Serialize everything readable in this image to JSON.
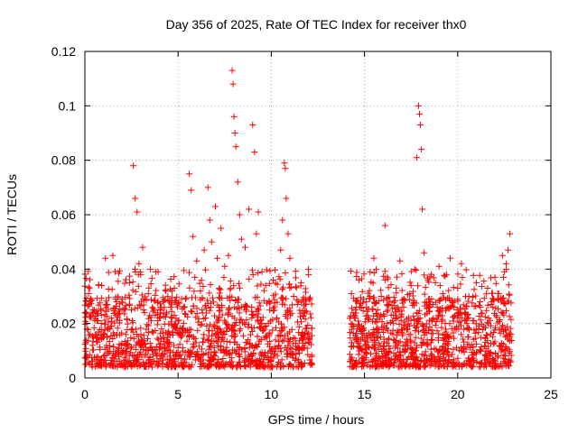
{
  "chart_data": {
    "type": "scatter",
    "title": "Day 356 of 2025, Rate Of TEC Index for receiver thx0",
    "xlabel": "GPS time / hours",
    "ylabel": "ROTI / TECUs",
    "xlim": [
      0,
      25
    ],
    "ylim": [
      0,
      0.12
    ],
    "xticks": [
      0,
      5,
      10,
      15,
      20,
      25
    ],
    "xtick_labels": [
      "0",
      "5",
      "10",
      "15",
      "20",
      "25"
    ],
    "yticks": [
      0,
      0.02,
      0.04,
      0.06,
      0.08,
      0.1,
      0.12
    ],
    "ytick_labels": [
      "0",
      "0.02",
      "0.04",
      "0.06",
      "0.08",
      "0.1",
      "0.12"
    ],
    "grid": true,
    "marker": "+",
    "color": "#ff0000",
    "data_gap_hours": [
      12.2,
      14.2
    ],
    "series": [
      {
        "name": "ROTI",
        "points": [
          [
            0.1,
            0.018
          ],
          [
            0.2,
            0.031
          ],
          [
            0.4,
            0.012
          ],
          [
            0.5,
            0.025
          ],
          [
            0.7,
            0.021
          ],
          [
            0.9,
            0.034
          ],
          [
            1.0,
            0.015
          ],
          [
            1.1,
            0.044
          ],
          [
            1.2,
            0.027
          ],
          [
            1.4,
            0.019
          ],
          [
            1.5,
            0.045
          ],
          [
            1.7,
            0.023
          ],
          [
            1.8,
            0.011
          ],
          [
            2.0,
            0.029
          ],
          [
            2.2,
            0.016
          ],
          [
            2.4,
            0.035
          ],
          [
            2.6,
            0.078
          ],
          [
            2.7,
            0.066
          ],
          [
            2.8,
            0.061
          ],
          [
            2.9,
            0.042
          ],
          [
            3.0,
            0.038
          ],
          [
            3.1,
            0.048
          ],
          [
            3.2,
            0.024
          ],
          [
            3.4,
            0.031
          ],
          [
            3.6,
            0.017
          ],
          [
            3.8,
            0.039
          ],
          [
            4.0,
            0.022
          ],
          [
            4.2,
            0.028
          ],
          [
            4.4,
            0.014
          ],
          [
            4.6,
            0.026
          ],
          [
            4.8,
            0.033
          ],
          [
            5.0,
            0.021
          ],
          [
            5.2,
            0.018
          ],
          [
            5.4,
            0.029
          ],
          [
            5.6,
            0.075
          ],
          [
            5.7,
            0.069
          ],
          [
            5.8,
            0.052
          ],
          [
            5.9,
            0.037
          ],
          [
            6.0,
            0.043
          ],
          [
            6.2,
            0.032
          ],
          [
            6.4,
            0.047
          ],
          [
            6.6,
            0.07
          ],
          [
            6.7,
            0.058
          ],
          [
            6.8,
            0.05
          ],
          [
            7.0,
            0.063
          ],
          [
            7.1,
            0.044
          ],
          [
            7.3,
            0.055
          ],
          [
            7.5,
            0.041
          ],
          [
            7.7,
            0.045
          ],
          [
            7.9,
            0.113
          ],
          [
            7.95,
            0.108
          ],
          [
            8.0,
            0.096
          ],
          [
            8.05,
            0.09
          ],
          [
            8.1,
            0.085
          ],
          [
            8.2,
            0.072
          ],
          [
            8.3,
            0.06
          ],
          [
            8.4,
            0.051
          ],
          [
            8.6,
            0.048
          ],
          [
            8.8,
            0.062
          ],
          [
            9.0,
            0.093
          ],
          [
            9.1,
            0.083
          ],
          [
            9.2,
            0.053
          ],
          [
            9.3,
            0.061
          ],
          [
            9.5,
            0.039
          ],
          [
            9.7,
            0.034
          ],
          [
            9.9,
            0.028
          ],
          [
            10.1,
            0.036
          ],
          [
            10.3,
            0.022
          ],
          [
            10.5,
            0.047
          ],
          [
            10.6,
            0.058
          ],
          [
            10.7,
            0.079
          ],
          [
            10.75,
            0.077
          ],
          [
            10.8,
            0.066
          ],
          [
            10.9,
            0.053
          ],
          [
            11.0,
            0.044
          ],
          [
            11.2,
            0.03
          ],
          [
            11.4,
            0.027
          ],
          [
            11.6,
            0.035
          ],
          [
            11.8,
            0.024
          ],
          [
            12.0,
            0.038
          ],
          [
            14.3,
            0.031
          ],
          [
            14.5,
            0.022
          ],
          [
            14.7,
            0.036
          ],
          [
            14.9,
            0.018
          ],
          [
            15.1,
            0.028
          ],
          [
            15.3,
            0.039
          ],
          [
            15.5,
            0.044
          ],
          [
            15.7,
            0.025
          ],
          [
            15.9,
            0.03
          ],
          [
            16.1,
            0.056
          ],
          [
            16.3,
            0.027
          ],
          [
            16.5,
            0.021
          ],
          [
            16.7,
            0.033
          ],
          [
            16.9,
            0.043
          ],
          [
            17.1,
            0.026
          ],
          [
            17.3,
            0.019
          ],
          [
            17.5,
            0.034
          ],
          [
            17.7,
            0.04
          ],
          [
            17.8,
            0.081
          ],
          [
            17.9,
            0.1
          ],
          [
            17.95,
            0.097
          ],
          [
            18.0,
            0.093
          ],
          [
            18.05,
            0.084
          ],
          [
            18.1,
            0.062
          ],
          [
            18.2,
            0.046
          ],
          [
            18.4,
            0.036
          ],
          [
            18.6,
            0.029
          ],
          [
            18.8,
            0.035
          ],
          [
            19.0,
            0.041
          ],
          [
            19.2,
            0.031
          ],
          [
            19.4,
            0.038
          ],
          [
            19.6,
            0.044
          ],
          [
            19.8,
            0.026
          ],
          [
            20.0,
            0.033
          ],
          [
            20.2,
            0.042
          ],
          [
            20.4,
            0.024
          ],
          [
            20.6,
            0.03
          ],
          [
            20.8,
            0.021
          ],
          [
            21.0,
            0.035
          ],
          [
            21.2,
            0.028
          ],
          [
            21.4,
            0.019
          ],
          [
            21.6,
            0.033
          ],
          [
            21.8,
            0.027
          ],
          [
            22.0,
            0.037
          ],
          [
            22.2,
            0.031
          ],
          [
            22.4,
            0.045
          ],
          [
            22.5,
            0.039
          ],
          [
            22.6,
            0.042
          ],
          [
            22.7,
            0.047
          ],
          [
            22.8,
            0.053
          ]
        ]
      }
    ]
  }
}
